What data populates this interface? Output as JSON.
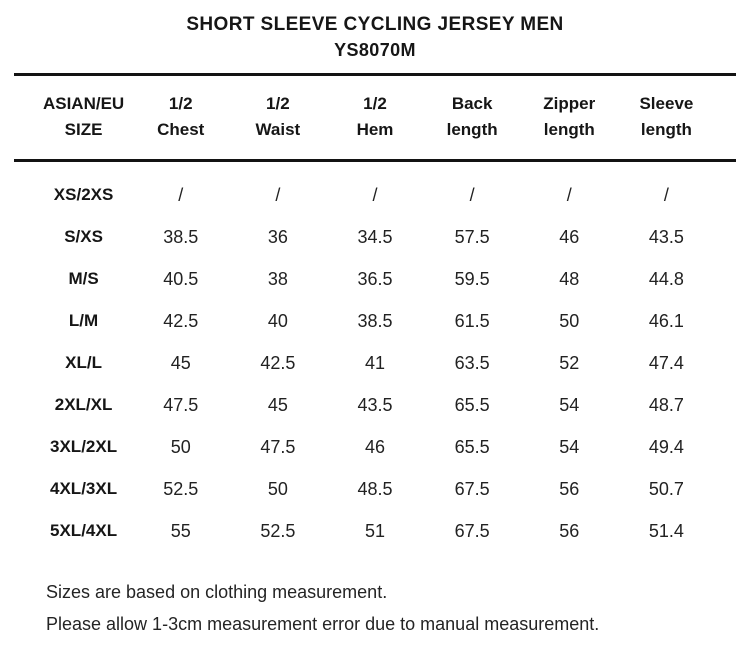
{
  "header": {
    "title": "SHORT SLEEVE CYCLING JERSEY MEN",
    "subtitle": "YS8070M"
  },
  "table": {
    "headers": [
      {
        "line1": "ASIAN/EU",
        "line2": "SIZE"
      },
      {
        "line1": "1/2",
        "line2": "Chest"
      },
      {
        "line1": "1/2",
        "line2": "Waist"
      },
      {
        "line1": "1/2",
        "line2": "Hem"
      },
      {
        "line1": "Back",
        "line2": "length"
      },
      {
        "line1": "Zipper",
        "line2": "length"
      },
      {
        "line1": "Sleeve",
        "line2": "length"
      }
    ],
    "rows": [
      {
        "size": "XS/2XS",
        "values": [
          "/",
          "/",
          "/",
          "/",
          "/",
          "/"
        ]
      },
      {
        "size": "S/XS",
        "values": [
          "38.5",
          "36",
          "34.5",
          "57.5",
          "46",
          "43.5"
        ]
      },
      {
        "size": "M/S",
        "values": [
          "40.5",
          "38",
          "36.5",
          "59.5",
          "48",
          "44.8"
        ]
      },
      {
        "size": "L/M",
        "values": [
          "42.5",
          "40",
          "38.5",
          "61.5",
          "50",
          "46.1"
        ]
      },
      {
        "size": "XL/L",
        "values": [
          "45",
          "42.5",
          "41",
          "63.5",
          "52",
          "47.4"
        ]
      },
      {
        "size": "2XL/XL",
        "values": [
          "47.5",
          "45",
          "43.5",
          "65.5",
          "54",
          "48.7"
        ]
      },
      {
        "size": "3XL/2XL",
        "values": [
          "50",
          "47.5",
          "46",
          "65.5",
          "54",
          "49.4"
        ]
      },
      {
        "size": "4XL/3XL",
        "values": [
          "52.5",
          "50",
          "48.5",
          "67.5",
          "56",
          "50.7"
        ]
      },
      {
        "size": "5XL/4XL",
        "values": [
          "55",
          "52.5",
          "51",
          "67.5",
          "56",
          "51.4"
        ]
      }
    ]
  },
  "notes": [
    "Sizes are based on clothing measurement.",
    "Please allow 1-3cm measurement error due to manual measurement."
  ],
  "colors": {
    "background": "#ffffff",
    "text": "#1a1a1a",
    "rule": "#131313"
  },
  "chart_data": {
    "type": "table",
    "title": "SHORT SLEEVE CYCLING JERSEY MEN",
    "subtitle": "YS8070M",
    "columns": [
      "ASIAN/EU SIZE",
      "1/2 Chest",
      "1/2 Waist",
      "1/2 Hem",
      "Back length",
      "Zipper length",
      "Sleeve length"
    ],
    "rows": [
      [
        "XS/2XS",
        "/",
        "/",
        "/",
        "/",
        "/",
        "/"
      ],
      [
        "S/XS",
        38.5,
        36,
        34.5,
        57.5,
        46,
        43.5
      ],
      [
        "M/S",
        40.5,
        38,
        36.5,
        59.5,
        48,
        44.8
      ],
      [
        "L/M",
        42.5,
        40,
        38.5,
        61.5,
        50,
        46.1
      ],
      [
        "XL/L",
        45,
        42.5,
        41,
        63.5,
        52,
        47.4
      ],
      [
        "2XL/XL",
        47.5,
        45,
        43.5,
        65.5,
        54,
        48.7
      ],
      [
        "3XL/2XL",
        50,
        47.5,
        46,
        65.5,
        54,
        49.4
      ],
      [
        "4XL/3XL",
        52.5,
        50,
        48.5,
        67.5,
        56,
        50.7
      ],
      [
        "5XL/4XL",
        55,
        52.5,
        51,
        67.5,
        56,
        51.4
      ]
    ],
    "notes": [
      "Sizes are based on clothing measurement.",
      "Please allow 1-3cm measurement error due to manual measurement."
    ]
  }
}
